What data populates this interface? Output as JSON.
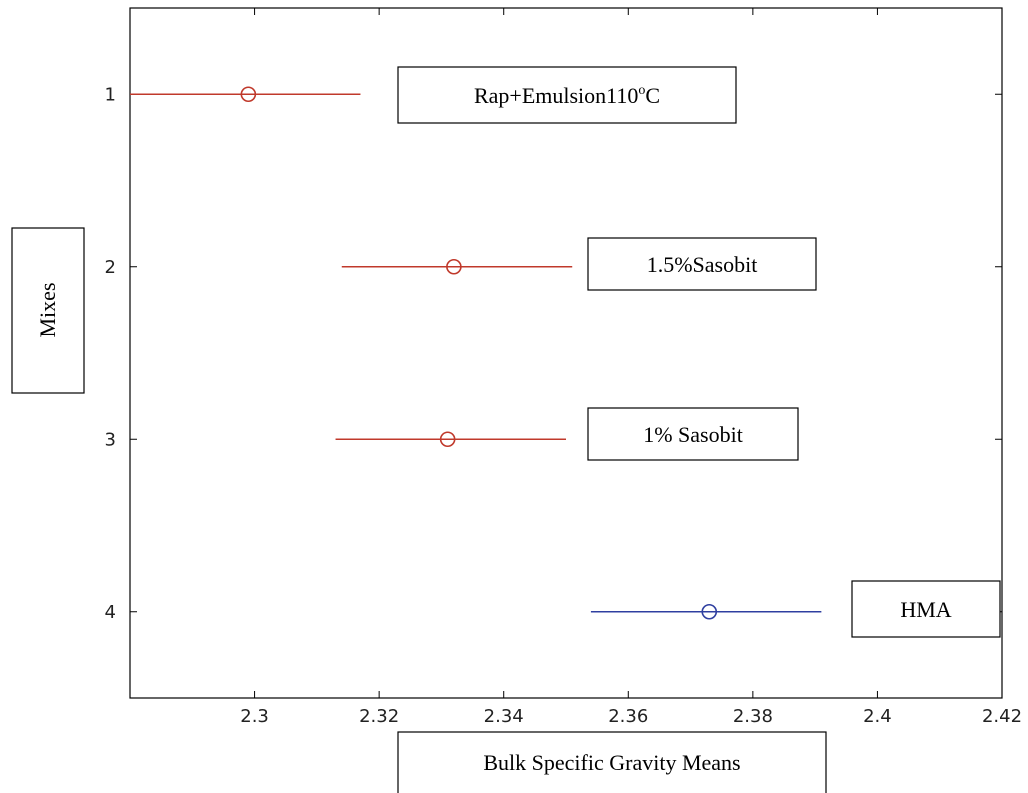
{
  "chart_data": {
    "type": "errorbar",
    "xlabel": "Bulk Specific Gravity Means",
    "ylabel": "Mixes",
    "xlim": [
      2.28,
      2.42
    ],
    "ylim": [
      0.5,
      4.5
    ],
    "y_reversed": true,
    "x_ticks": [
      "2.3",
      "2.32",
      "2.34",
      "2.36",
      "2.38",
      "2.4",
      "2.42"
    ],
    "y_ticks": [
      "1",
      "2",
      "3",
      "4"
    ],
    "series": [
      {
        "label": "Rap+Emulsion110",
        "label_sup": "o",
        "label_suffix": "C",
        "y": 1,
        "mean": 2.299,
        "low": 2.28,
        "high": 2.317,
        "color": "#c0392b"
      },
      {
        "label": "1.5%Sasobit",
        "y": 2,
        "mean": 2.332,
        "low": 2.314,
        "high": 2.351,
        "color": "#c0392b"
      },
      {
        "label": "1% Sasobit",
        "y": 3,
        "mean": 2.331,
        "low": 2.313,
        "high": 2.35,
        "color": "#c0392b"
      },
      {
        "label": "HMA",
        "y": 4,
        "mean": 2.373,
        "low": 2.354,
        "high": 2.391,
        "color": "#2f3fa0"
      }
    ]
  }
}
